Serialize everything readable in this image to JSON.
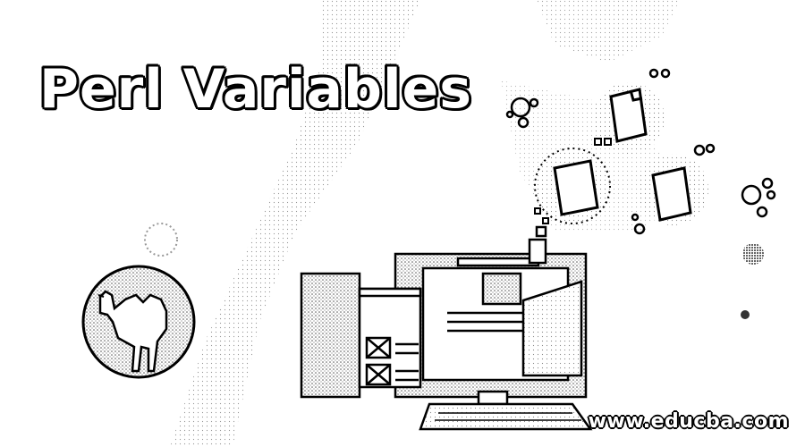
{
  "title": "Perl Variables",
  "site": "www.educba.com",
  "colors": {
    "ink": "#000000",
    "paper": "#ffffff",
    "stipple": "#8a8a8a"
  },
  "icons": [
    "camel-logo",
    "computer-monitor-illustration",
    "document-icon",
    "gear-bubbles-icon"
  ]
}
